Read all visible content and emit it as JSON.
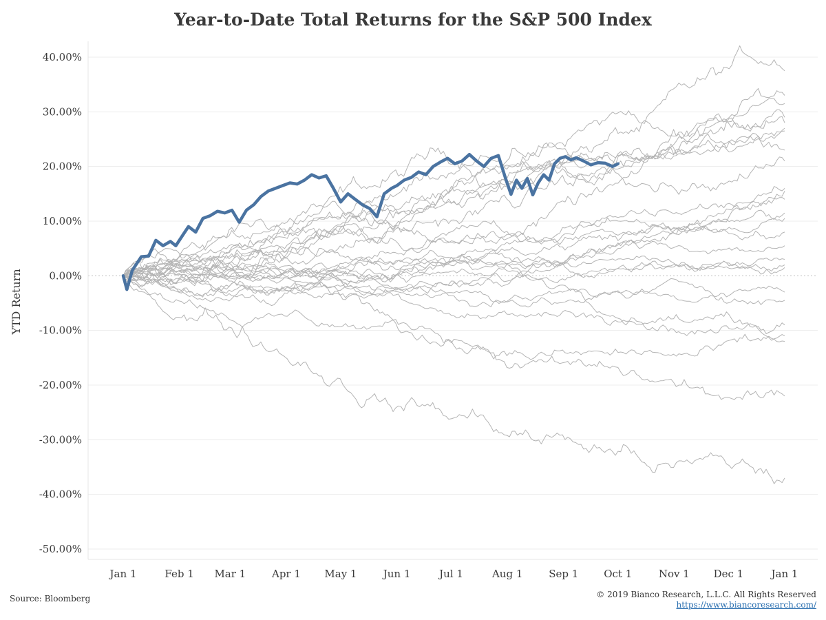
{
  "chart_data": {
    "type": "line",
    "title": "Year-to-Date Total Returns for the S&P 500 Index",
    "ylabel": "YTD Return",
    "xlabel": "",
    "y_ticks": [
      "40.00%",
      "30.00%",
      "20.00%",
      "10.00%",
      "0.00%",
      "-10.00%",
      "-20.00%",
      "-30.00%",
      "-40.00%",
      "-50.00%"
    ],
    "y_tick_values": [
      40,
      30,
      20,
      10,
      0,
      -10,
      -20,
      -30,
      -40,
      -50
    ],
    "x_ticks": [
      "Jan 1",
      "Feb 1",
      "Mar 1",
      "Apr 1",
      "May 1",
      "Jun 1",
      "Jul 1",
      "Aug 1",
      "Sep 1",
      "Oct 1",
      "Nov 1",
      "Dec 1",
      "Jan 1"
    ],
    "x_tick_days": [
      0,
      31,
      59,
      90,
      120,
      151,
      181,
      212,
      243,
      273,
      304,
      334,
      365
    ],
    "ylim": [
      -52,
      42
    ],
    "xlim": [
      0,
      365
    ],
    "grid": "horizontal",
    "zero_line": "dotted",
    "highlight_color": "#4a73a1",
    "history_color": "#b4b4b4",
    "highlight_series": {
      "days": [
        0,
        2,
        5,
        7,
        10,
        14,
        18,
        22,
        26,
        29,
        33,
        36,
        40,
        44,
        48,
        52,
        56,
        60,
        64,
        68,
        72,
        76,
        80,
        84,
        88,
        92,
        96,
        100,
        104,
        108,
        112,
        116,
        120,
        124,
        128,
        132,
        136,
        140,
        144,
        148,
        151,
        155,
        159,
        163,
        167,
        171,
        175,
        179,
        183,
        187,
        191,
        195,
        199,
        203,
        207,
        211,
        214,
        217,
        220,
        223,
        226,
        229,
        232,
        235,
        238,
        241,
        244,
        247,
        250,
        254,
        258,
        262,
        266,
        270,
        273
      ],
      "values": [
        0.0,
        -2.5,
        1.0,
        2.0,
        3.5,
        3.6,
        6.5,
        5.5,
        6.3,
        5.5,
        7.5,
        9.0,
        8.0,
        10.5,
        11.0,
        11.8,
        11.5,
        12.0,
        9.8,
        12.0,
        13.0,
        14.5,
        15.5,
        16.0,
        16.5,
        17.0,
        16.8,
        17.5,
        18.5,
        17.9,
        18.3,
        16.0,
        13.5,
        15.0,
        14.0,
        13.0,
        12.3,
        10.8,
        15.0,
        16.0,
        16.5,
        17.5,
        18.0,
        19.0,
        18.5,
        20.0,
        20.8,
        21.5,
        20.5,
        21.0,
        22.2,
        21.0,
        20.0,
        21.5,
        22.0,
        17.8,
        14.9,
        17.5,
        16.0,
        17.8,
        14.8,
        17.0,
        18.5,
        17.5,
        20.5,
        21.5,
        21.8,
        21.2,
        21.6,
        21.0,
        20.3,
        20.7,
        20.6,
        20.0,
        20.5
      ]
    },
    "history_series_finals": [
      37.5,
      33.0,
      31.5,
      29.0,
      28.0,
      27.0,
      26.5,
      23.0,
      21.0,
      16.0,
      15.5,
      14.0,
      11.5,
      10.5,
      8.0,
      5.5,
      3.0,
      2.0,
      1.5,
      -3.0,
      -4.5,
      -9.0,
      -11.0,
      -12.0,
      -22.0,
      -37.0
    ],
    "history_series_note": "faint grey lines for prior years"
  },
  "source": "Source: Bloomberg",
  "copyright": "© 2019 Bianco Research, L.L.C. All Rights Reserved",
  "website": "https://www.biancoresearch.com/"
}
